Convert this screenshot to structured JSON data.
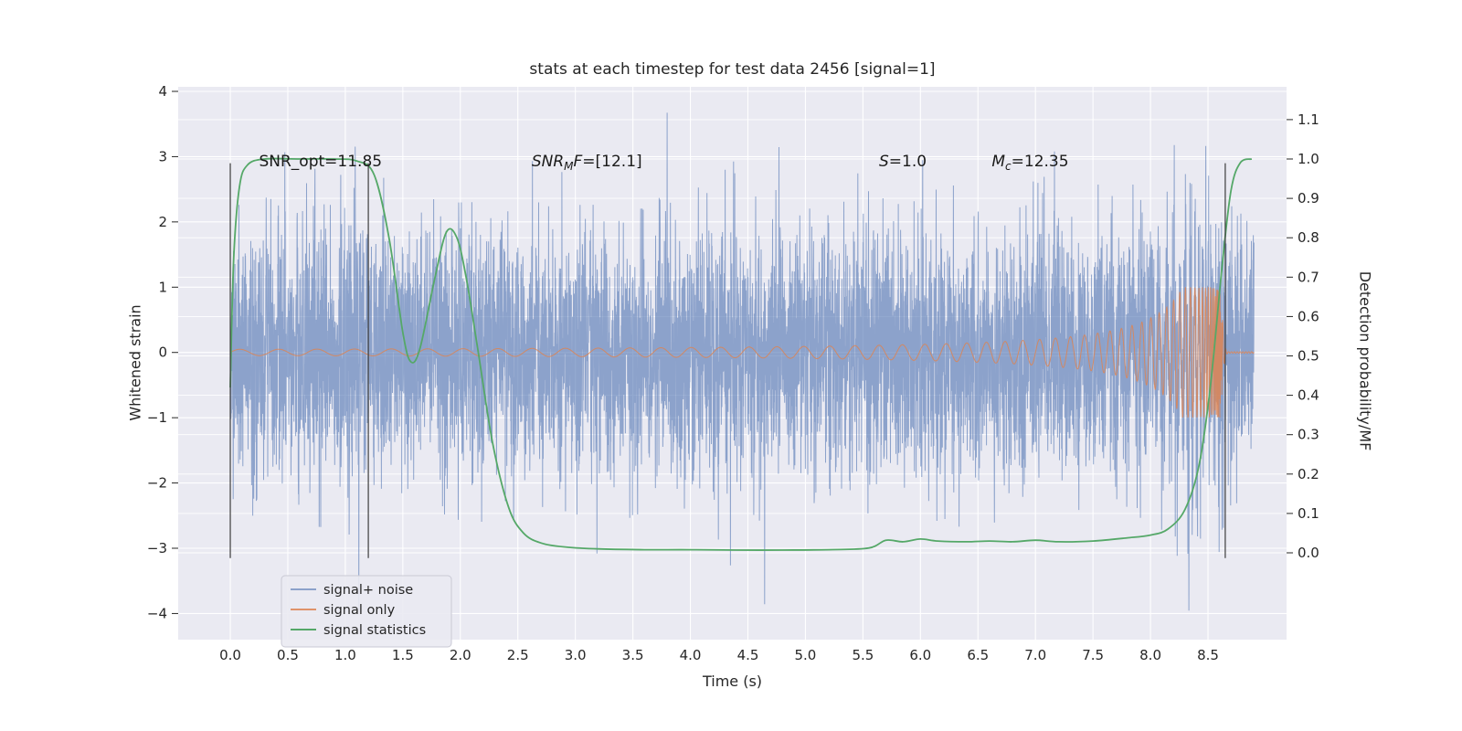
{
  "figure": {
    "background": "#ffffff",
    "plot_background": "#eaeaf2",
    "grid_color": "#ffffff",
    "tick_color": "#262626"
  },
  "axes": {
    "x": {
      "label": "Time (s)",
      "range": [
        -0.453,
        9.183
      ],
      "ticks": [
        0.0,
        0.5,
        1.0,
        1.5,
        2.0,
        2.5,
        3.0,
        3.5,
        4.0,
        4.5,
        5.0,
        5.5,
        6.0,
        6.5,
        7.0,
        7.5,
        8.0,
        8.5
      ],
      "tick_labels": [
        "0.0",
        "0.5",
        "1.0",
        "1.5",
        "2.0",
        "2.5",
        "3.0",
        "3.5",
        "4.0",
        "4.5",
        "5.0",
        "5.5",
        "6.0",
        "6.5",
        "7.0",
        "7.5",
        "8.0",
        "8.5"
      ]
    },
    "y_left": {
      "label": "Whitened strain",
      "range": [
        -4.4,
        4.07
      ],
      "ticks": [
        -4,
        -3,
        -2,
        -1,
        0,
        1,
        2,
        3,
        4
      ],
      "tick_labels": [
        "−4",
        "−3",
        "−2",
        "−1",
        "0",
        "1",
        "2",
        "3",
        "4"
      ]
    },
    "y_right": {
      "label": "Detection probability/MF",
      "range": [
        -0.2204,
        1.1833
      ],
      "ticks": [
        0.0,
        0.1,
        0.2,
        0.3,
        0.4,
        0.5,
        0.6,
        0.7,
        0.8,
        0.9,
        1.0,
        1.1
      ],
      "tick_labels": [
        "0.0",
        "0.1",
        "0.2",
        "0.3",
        "0.4",
        "0.5",
        "0.6",
        "0.7",
        "0.8",
        "0.9",
        "1.0",
        "1.1"
      ]
    }
  },
  "chart_data": {
    "type": "line",
    "title": "stats at each timestep for test data 2456 [signal=1]",
    "xlabel": "Time (s)",
    "ylabel_left": "Whitened strain",
    "ylabel_right": "Detection probability/MF",
    "x_range_data": [
      0.0,
      8.9
    ],
    "series": [
      {
        "name": "signal+ noise",
        "kind": "noise_plus_signal",
        "axis": "left",
        "color": "#4C72B0",
        "opacity": 0.6,
        "noise_std": 0.95,
        "seed": 1337,
        "sample_dt": 0.0015,
        "t_start": 0.0,
        "t_end": 8.9
      },
      {
        "name": "signal only",
        "kind": "chirp",
        "axis": "left",
        "color": "#DD8452",
        "opacity": 0.85,
        "t_merger": 8.62,
        "amp_base": 0.02,
        "amp_coef": 0.3,
        "amp_pow": -1.1,
        "amp_max": 1.0,
        "f_base": 1.5,
        "f_coef": 8.0,
        "f_pow": -0.8,
        "post_decay": 0.012,
        "sample_dt": 0.002,
        "t_start": 0.0,
        "t_end": 8.9
      },
      {
        "name": "signal statistics",
        "kind": "smooth_line",
        "axis": "right",
        "color": "#55A868",
        "opacity": 1.0,
        "points": [
          [
            0.0,
            0.42
          ],
          [
            0.03,
            0.75
          ],
          [
            0.08,
            0.93
          ],
          [
            0.15,
            0.985
          ],
          [
            0.3,
            1.0
          ],
          [
            0.6,
            1.0
          ],
          [
            0.9,
            1.0
          ],
          [
            1.1,
            0.995
          ],
          [
            1.25,
            0.96
          ],
          [
            1.38,
            0.8
          ],
          [
            1.5,
            0.56
          ],
          [
            1.57,
            0.485
          ],
          [
            1.65,
            0.52
          ],
          [
            1.78,
            0.7
          ],
          [
            1.88,
            0.815
          ],
          [
            1.97,
            0.8
          ],
          [
            2.05,
            0.7
          ],
          [
            2.15,
            0.52
          ],
          [
            2.28,
            0.28
          ],
          [
            2.42,
            0.115
          ],
          [
            2.55,
            0.05
          ],
          [
            2.7,
            0.025
          ],
          [
            2.9,
            0.015
          ],
          [
            3.2,
            0.01
          ],
          [
            3.6,
            0.008
          ],
          [
            4.0,
            0.008
          ],
          [
            4.4,
            0.007
          ],
          [
            4.8,
            0.007
          ],
          [
            5.2,
            0.008
          ],
          [
            5.55,
            0.012
          ],
          [
            5.7,
            0.032
          ],
          [
            5.85,
            0.028
          ],
          [
            6.0,
            0.035
          ],
          [
            6.15,
            0.03
          ],
          [
            6.4,
            0.028
          ],
          [
            6.6,
            0.03
          ],
          [
            6.8,
            0.028
          ],
          [
            7.0,
            0.032
          ],
          [
            7.2,
            0.028
          ],
          [
            7.5,
            0.03
          ],
          [
            7.8,
            0.038
          ],
          [
            8.0,
            0.045
          ],
          [
            8.15,
            0.06
          ],
          [
            8.3,
            0.11
          ],
          [
            8.42,
            0.22
          ],
          [
            8.52,
            0.42
          ],
          [
            8.62,
            0.72
          ],
          [
            8.7,
            0.92
          ],
          [
            8.78,
            0.99
          ],
          [
            8.88,
            1.0
          ]
        ]
      }
    ],
    "vlines": {
      "x": [
        0.0,
        1.2,
        8.65
      ],
      "strain_span": [
        -3.15,
        2.9
      ],
      "color": "#3c3c3c"
    },
    "annotations": [
      {
        "name": "snr-opt-annotation",
        "x": 0.25,
        "y_strain": 2.85,
        "segments": [
          {
            "t": "SNR_opt=11.85",
            "italic": false,
            "sub": false
          }
        ]
      },
      {
        "name": "snr-mf-annotation",
        "x": 2.62,
        "y_strain": 2.85,
        "segments": [
          {
            "t": "SNR",
            "italic": true,
            "sub": false
          },
          {
            "t": "M",
            "italic": true,
            "sub": true
          },
          {
            "t": "F",
            "italic": true,
            "sub": false
          },
          {
            "t": "=[12.1]",
            "italic": false,
            "sub": false
          }
        ]
      },
      {
        "name": "s-annotation",
        "x": 5.64,
        "y_strain": 2.85,
        "segments": [
          {
            "t": "S",
            "italic": true,
            "sub": false
          },
          {
            "t": "=1.0",
            "italic": false,
            "sub": false
          }
        ]
      },
      {
        "name": "mc-annotation",
        "x": 6.62,
        "y_strain": 2.85,
        "segments": [
          {
            "t": "M",
            "italic": true,
            "sub": false
          },
          {
            "t": "c",
            "italic": true,
            "sub": true
          },
          {
            "t": "=12.35",
            "italic": false,
            "sub": false
          }
        ]
      }
    ],
    "legend": {
      "position": "lower left",
      "items": [
        {
          "label": "signal+ noise",
          "color": "#4C72B0",
          "opacity": 0.6
        },
        {
          "label": "signal only",
          "color": "#DD8452",
          "opacity": 0.85
        },
        {
          "label": "signal statistics",
          "color": "#55A868",
          "opacity": 1.0
        }
      ]
    }
  }
}
